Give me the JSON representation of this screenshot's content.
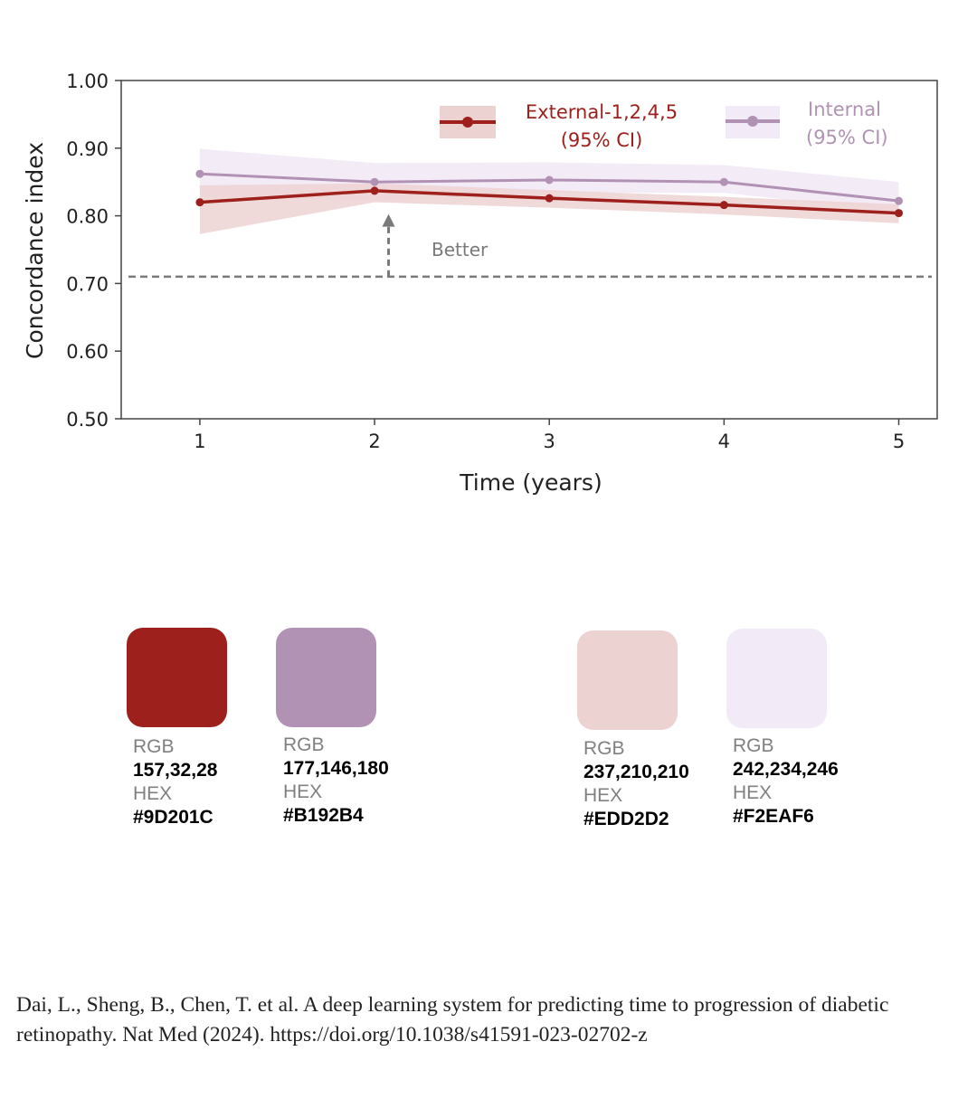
{
  "chart_data": {
    "type": "line",
    "xlabel": "Time (years)",
    "ylabel": "Concordance index",
    "x": [
      1,
      2,
      3,
      4,
      5
    ],
    "xlim": [
      0.55,
      5.22
    ],
    "ylim": [
      0.5,
      1.0
    ],
    "yticks": [
      "0.50",
      "0.60",
      "0.70",
      "0.80",
      "0.90",
      "1.00"
    ],
    "xticks": [
      "1",
      "2",
      "3",
      "4",
      "5"
    ],
    "grid": false,
    "series": [
      {
        "name": "External-1,2,4,5",
        "legend_line1": "External-1,2,4,5",
        "legend_line2": "(95% CI)",
        "color": "#9D201C",
        "band_color": "#EDD2D2",
        "values": [
          0.82,
          0.837,
          0.826,
          0.816,
          0.804
        ],
        "ci_lower": [
          0.773,
          0.82,
          0.812,
          0.802,
          0.789
        ],
        "ci_upper": [
          0.845,
          0.848,
          0.838,
          0.828,
          0.817
        ]
      },
      {
        "name": "Internal",
        "legend_line1": "Internal",
        "legend_line2": "(95% CI)",
        "color": "#B192B4",
        "band_color": "#F2EAF6",
        "values": [
          0.862,
          0.85,
          0.853,
          0.85,
          0.822
        ],
        "ci_lower": [
          0.828,
          0.822,
          0.834,
          0.834,
          0.806
        ],
        "ci_upper": [
          0.899,
          0.878,
          0.879,
          0.875,
          0.85
        ]
      }
    ],
    "reference_line": {
      "y": 0.71,
      "style": "dashed",
      "color": "#7a7a7a"
    },
    "annotation": {
      "text": "Better",
      "arrow_x": 2.08,
      "arrow_from": 0.71,
      "arrow_to": 0.8
    },
    "legend_placement": "top-right"
  },
  "palette": [
    {
      "rgb_label": "RGB",
      "rgb": "157,32,28",
      "hex_label": "HEX",
      "hex": "#9D201C"
    },
    {
      "rgb_label": "RGB",
      "rgb": "177,146,180",
      "hex_label": "HEX",
      "hex": "#B192B4"
    },
    {
      "rgb_label": "RGB",
      "rgb": "237,210,210",
      "hex_label": "HEX",
      "hex": "#EDD2D2"
    },
    {
      "rgb_label": "RGB",
      "rgb": "242,234,246",
      "hex_label": "HEX",
      "hex": "#F2EAF6"
    }
  ],
  "citation": "Dai, L., Sheng, B., Chen, T. et al. A deep learning system for predicting time to progression of diabetic retinopathy. Nat Med (2024). https://doi.org/10.1038/s41591-023-02702-z"
}
